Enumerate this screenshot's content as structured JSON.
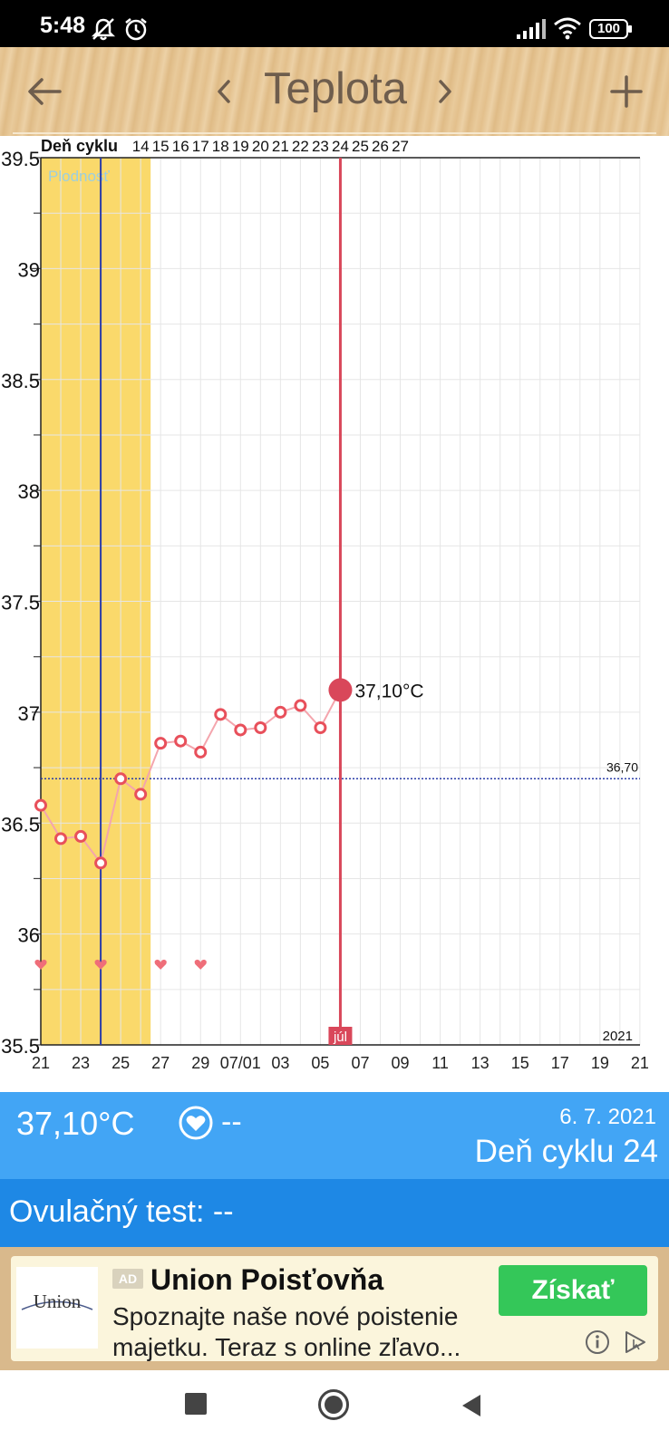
{
  "status_bar": {
    "time": "5:48",
    "battery": "100"
  },
  "app_bar": {
    "title": "Teplota"
  },
  "chart_data": {
    "type": "line",
    "header_label": "Deň cyklu",
    "fertility_label": "Plodnosť",
    "y_ticks": [
      "39.5",
      "39",
      "38.5",
      "38",
      "37.5",
      "37",
      "36.5",
      "36",
      "35.5"
    ],
    "ylim": [
      35.5,
      39.5
    ],
    "x_tick_labels": [
      "21",
      "23",
      "25",
      "27",
      "29",
      "07/01",
      "03",
      "05",
      "07",
      "09",
      "11",
      "13",
      "15",
      "17",
      "19",
      "21"
    ],
    "cycle_day_labels": [
      "14",
      "15",
      "16",
      "17",
      "18",
      "19",
      "20",
      "21",
      "22",
      "23",
      "24",
      "25",
      "26",
      "27"
    ],
    "month_marker": "júl",
    "year_label": "2021",
    "coverline_label": "36,70",
    "coverline_value": 36.7,
    "points": [
      {
        "date": "06/21",
        "temp": 36.58
      },
      {
        "date": "06/22",
        "temp": 36.43
      },
      {
        "date": "06/23",
        "temp": 36.44
      },
      {
        "date": "06/24",
        "temp": 36.32
      },
      {
        "date": "06/25",
        "temp": 36.7
      },
      {
        "date": "06/26",
        "temp": 36.63
      },
      {
        "date": "06/27",
        "temp": 36.86
      },
      {
        "date": "06/28",
        "temp": 36.87
      },
      {
        "date": "06/29",
        "temp": 36.82
      },
      {
        "date": "06/30",
        "temp": 36.99
      },
      {
        "date": "07/01",
        "temp": 36.92
      },
      {
        "date": "07/02",
        "temp": 36.93
      },
      {
        "date": "07/03",
        "temp": 37.0
      },
      {
        "date": "07/04",
        "temp": 37.03
      },
      {
        "date": "07/05",
        "temp": 36.93
      },
      {
        "date": "07/06",
        "temp": 37.1
      }
    ],
    "selected_label": "37,10°C",
    "intercourse_dates": [
      "06/21",
      "06/24",
      "06/27",
      "06/29"
    ],
    "colors": {
      "fertility": "#fad96b",
      "line": "#f4a5ad",
      "marker": "#e8505b",
      "selected": "#d9475a",
      "ovulation": "#2b3da8",
      "coverline": "#2b3da8"
    }
  },
  "info_panel": {
    "temperature": "37,10°C",
    "intercourse": "--",
    "date": "6. 7. 2021",
    "cycle_day": "Deň cyklu 24"
  },
  "ovulation_panel": {
    "label": "Ovulačný test: --"
  },
  "ad": {
    "badge": "AD",
    "title": "Union Poisťovňa",
    "text": "Spoznajte naše nové poistenie majetku. Teraz s online zľavo...",
    "cta": "Získať",
    "logo_text": "Union"
  }
}
